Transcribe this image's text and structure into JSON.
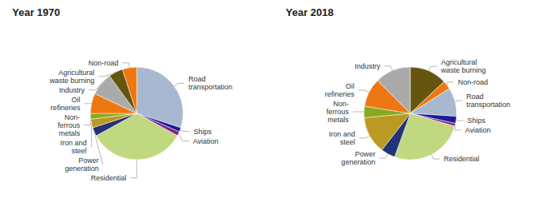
{
  "chart_data": [
    {
      "type": "pie",
      "title": "Year 1970",
      "categories": [
        "Road\ntransportation",
        "Ships",
        "Aviation",
        "Residential",
        "Power\ngeneration",
        "Iron and\nsteel",
        "Non-\nferrous\nmetals",
        "Oil\nrefineries",
        "Industry",
        "Agricultural\nwaste burning",
        "Non-road"
      ],
      "values": [
        30,
        1.5,
        1.5,
        34,
        3,
        3,
        2,
        7,
        8,
        5,
        5
      ],
      "colors": [
        "#a8b8d0",
        "#1a1a99",
        "#882288",
        "#c0d880",
        "#223377",
        "#bb9922",
        "#88aa22",
        "#ee7711",
        "#aaaaaa",
        "#665511",
        "#ee7711"
      ]
    },
    {
      "type": "pie",
      "title": "Year 2018",
      "categories": [
        "Agricultural\nwaste burning",
        "Non-road",
        "Road\ntransportation",
        "Ships",
        "Aviation",
        "Residential",
        "Power\ngeneration",
        "Iron and\nsteel",
        "Non-\nferrous\nmetals",
        "Oil\nrefineries",
        "Industry"
      ],
      "values": [
        13,
        3,
        10,
        2.5,
        1,
        26,
        5,
        13,
        4,
        10,
        12.5
      ],
      "colors": [
        "#665511",
        "#ee7711",
        "#a8b8d0",
        "#1a1a99",
        "#882288",
        "#c0d880",
        "#223377",
        "#bb9922",
        "#88aa22",
        "#ee7711",
        "#aaaaaa"
      ]
    }
  ]
}
